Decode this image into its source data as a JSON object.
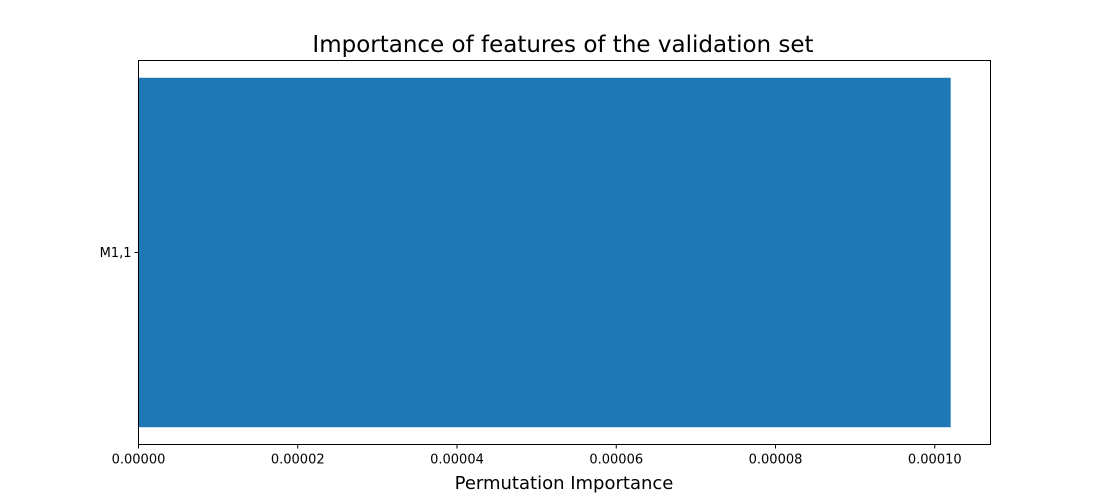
{
  "chart_data": {
    "type": "bar",
    "orientation": "horizontal",
    "title": "Importance of features of the validation set",
    "xlabel": "Permutation Importance",
    "ylabel": "",
    "categories": [
      "M1,1"
    ],
    "values": [
      0.000102
    ],
    "xlim": [
      0,
      0.000107
    ],
    "x_ticks": [
      0,
      2e-05,
      4e-05,
      6e-05,
      8e-05,
      0.0001
    ],
    "x_tick_labels": [
      "0.00000",
      "0.00002",
      "0.00004",
      "0.00006",
      "0.00008",
      "0.00010"
    ],
    "grid": false,
    "legend": "none",
    "bar_color": "#1f77b4"
  }
}
